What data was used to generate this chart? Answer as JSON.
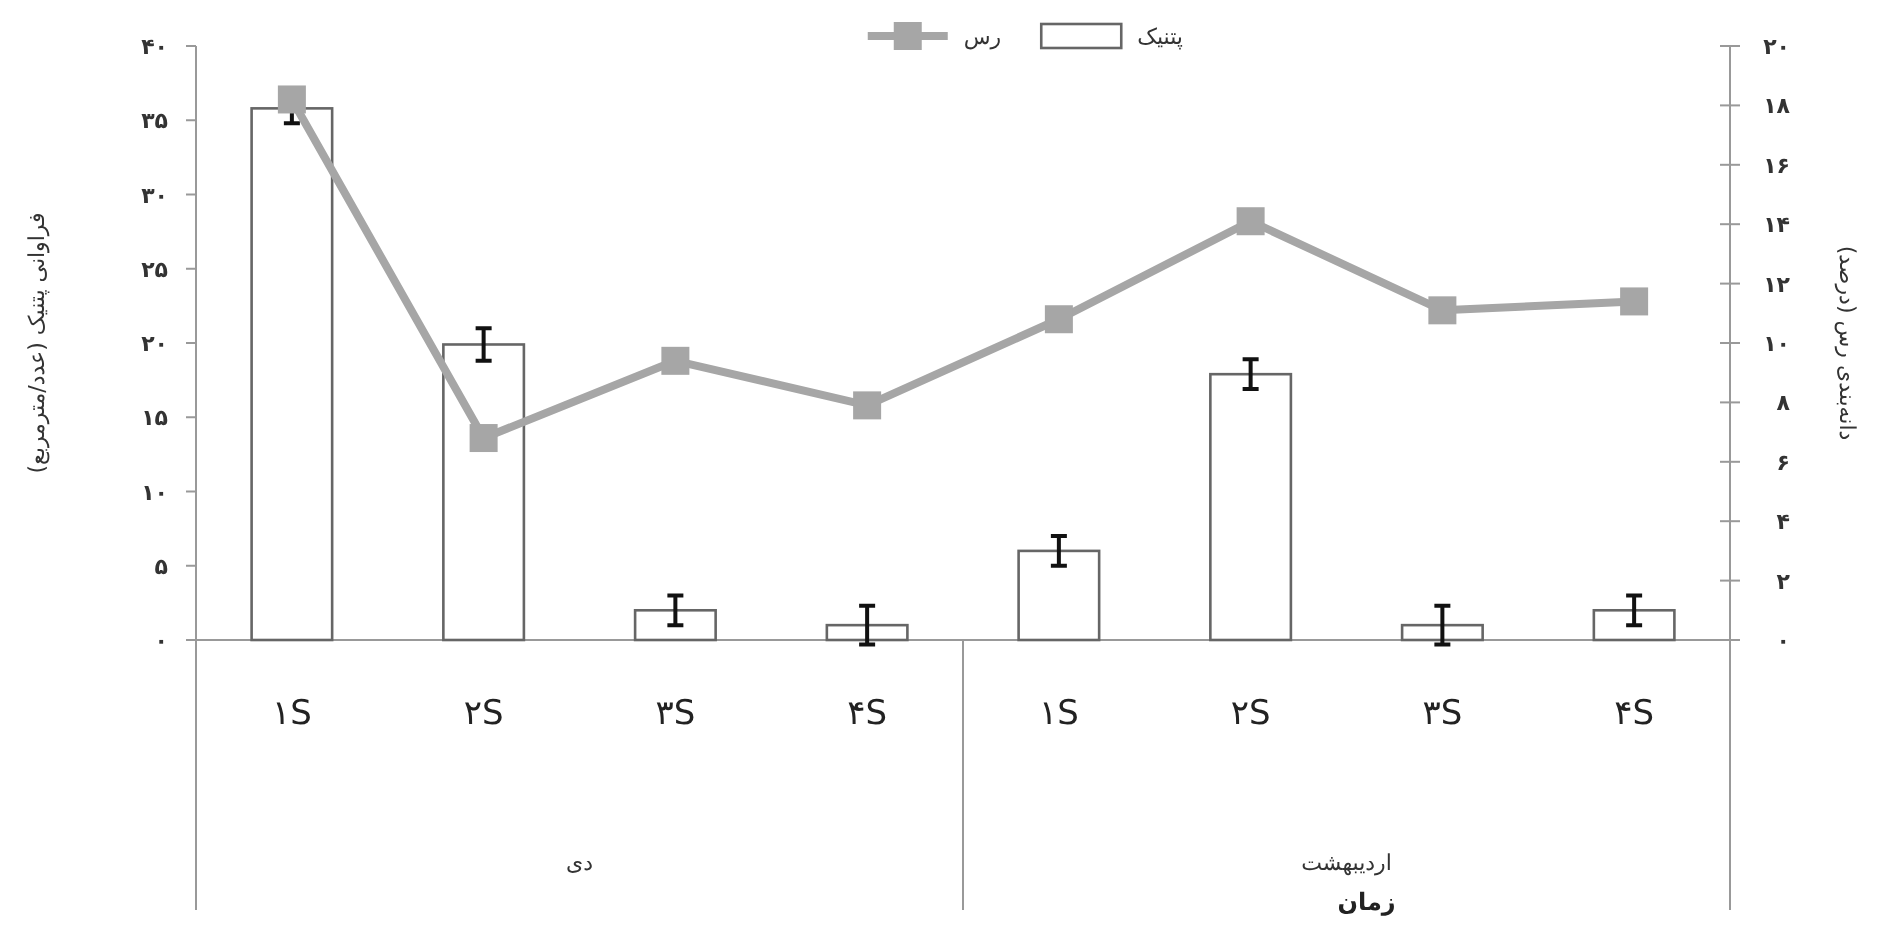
{
  "chart_data": {
    "type": "bar",
    "categories": [
      "۱S",
      "۲S",
      "۳S",
      "۴S",
      "۱S",
      "۲S",
      "۳S",
      "۴S"
    ],
    "series": [
      {
        "name": "پتنیک",
        "color": "#ffffff",
        "values": [
          35.8,
          19.9,
          2,
          1,
          6,
          17.9,
          1,
          2
        ],
        "errors": [
          1,
          1.1,
          1,
          1.3,
          1,
          1,
          1.3,
          1
        ]
      },
      {
        "name": "رس",
        "type": "line",
        "axis": "y2",
        "color": "#a6a6a6",
        "values": [
          18.2,
          6.8,
          9.4,
          7.9,
          10.8,
          14.1,
          11.1,
          11.4
        ]
      }
    ],
    "ylim": [
      0,
      40
    ],
    "yticks": [
      {
        "value": 0,
        "label": "۰"
      },
      {
        "value": 5,
        "label": "۵"
      },
      {
        "value": 10,
        "label": "۱۰"
      },
      {
        "value": 15,
        "label": "۱۵"
      },
      {
        "value": 20,
        "label": "۲۰"
      },
      {
        "value": 25,
        "label": "۲۵"
      },
      {
        "value": 30,
        "label": "۳۰"
      },
      {
        "value": 35,
        "label": "۳۵"
      },
      {
        "value": 40,
        "label": "۴۰"
      }
    ],
    "y2lim": [
      0,
      20
    ],
    "y2ticks": [
      {
        "value": 0,
        "label": "۰"
      },
      {
        "value": 2,
        "label": "۲"
      },
      {
        "value": 4,
        "label": "۴"
      },
      {
        "value": 6,
        "label": "۶"
      },
      {
        "value": 8,
        "label": "۸"
      },
      {
        "value": 10,
        "label": "۱۰"
      },
      {
        "value": 12,
        "label": "۱۲"
      },
      {
        "value": 14,
        "label": "۱۴"
      },
      {
        "value": 16,
        "label": "۱۶"
      },
      {
        "value": 18,
        "label": "۱۸"
      },
      {
        "value": 20,
        "label": "۲۰"
      }
    ],
    "ylabel": "فراوانی پتنیک (عدد/مترمربع)",
    "y2label": "دانه‌بندی رس (درصد)",
    "annotations": [
      "دی",
      "اردیبهشت",
      "زمان"
    ],
    "legend": "top",
    "marker": "square",
    "grid": false
  }
}
